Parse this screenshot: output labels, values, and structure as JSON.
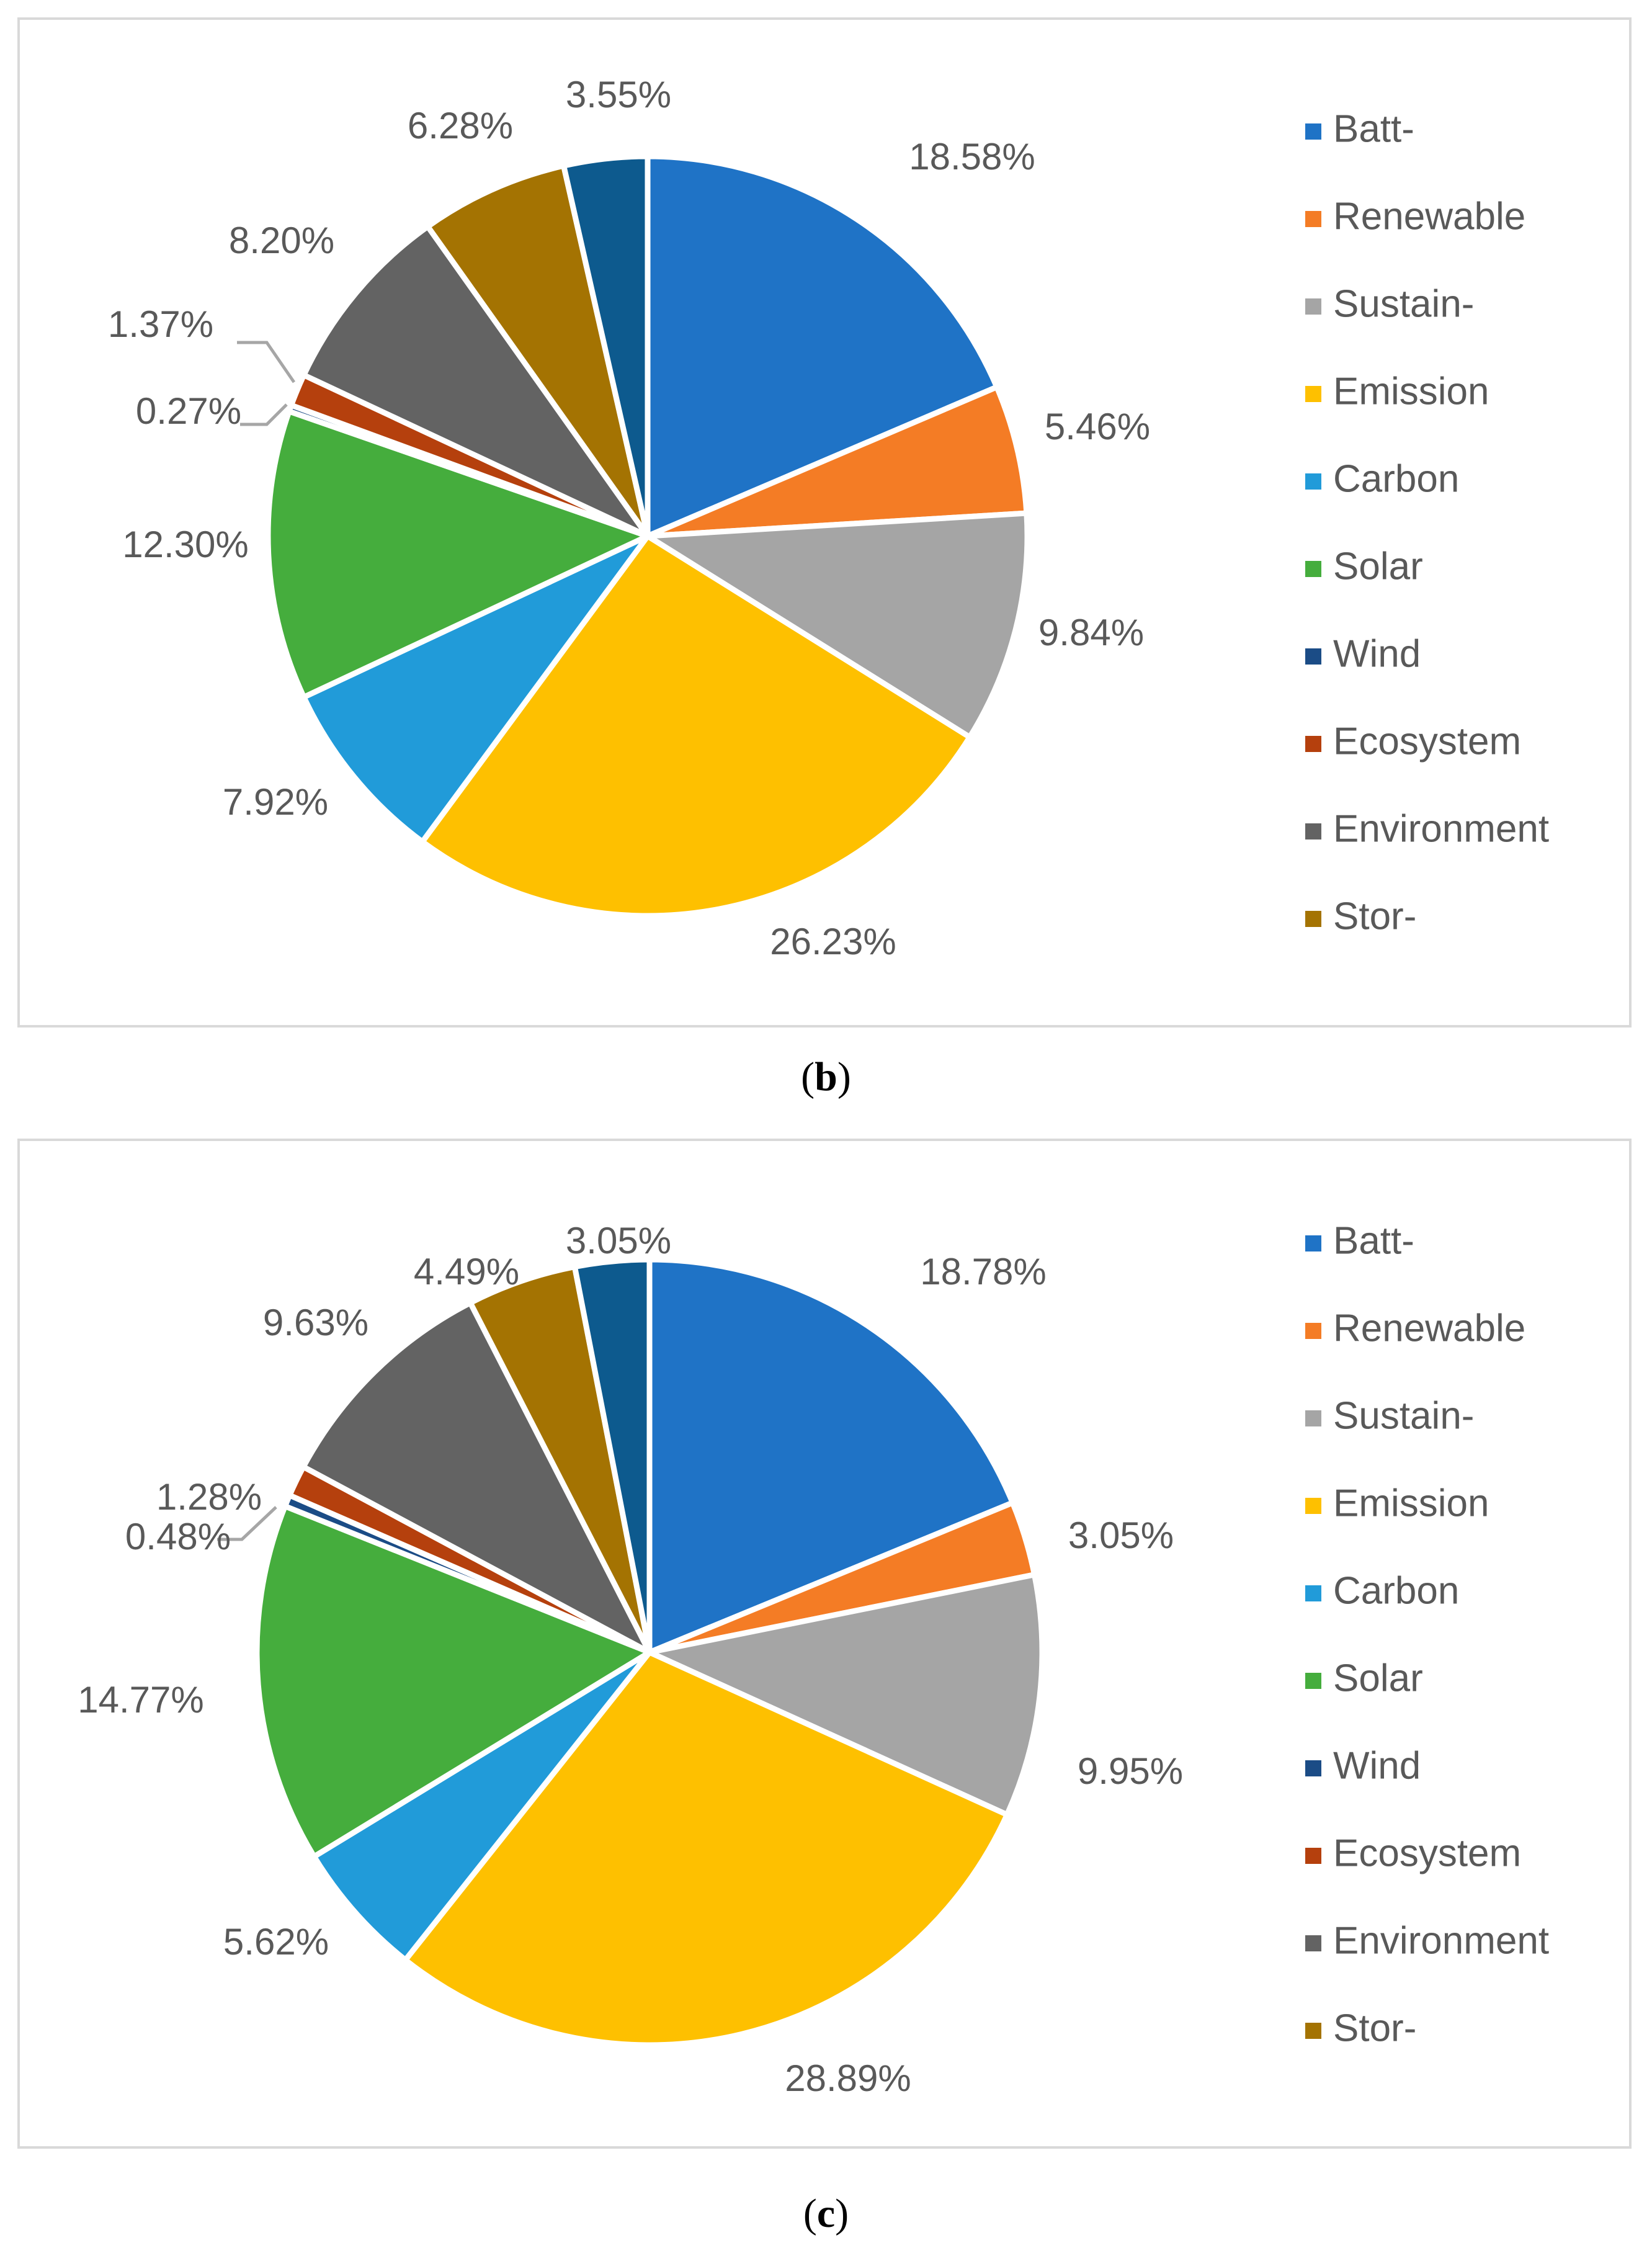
{
  "chart_data": [
    {
      "type": "pie",
      "panel_label": "b",
      "categories": [
        "Batt-",
        "Renewable",
        "Sustain-",
        "Emission",
        "Carbon",
        "Solar",
        "Wind",
        "Ecosystem",
        "Environment",
        "Stor-"
      ],
      "slices": [
        {
          "category": "Batt-",
          "value": 18.58,
          "label": "18.58%"
        },
        {
          "category": "Renewable",
          "value": 5.46,
          "label": "5.46%"
        },
        {
          "category": "Sustain-",
          "value": 9.84,
          "label": "9.84%"
        },
        {
          "category": "Emission",
          "value": 26.23,
          "label": "26.23%"
        },
        {
          "category": "Carbon",
          "value": 7.92,
          "label": "7.92%"
        },
        {
          "category": "Solar",
          "value": 12.3,
          "label": "12.30%"
        },
        {
          "category": "Wind",
          "value": 0.27,
          "label": "0.27%"
        },
        {
          "category": "Ecosystem",
          "value": 1.37,
          "label": "1.37%"
        },
        {
          "category": "Environment",
          "value": 8.2,
          "label": "8.20%"
        },
        {
          "category": "Stor-",
          "value": 6.28,
          "label": "6.28%"
        },
        {
          "category": "",
          "value": 3.55,
          "label": "3.55%"
        }
      ],
      "legend_position": "right"
    },
    {
      "type": "pie",
      "panel_label": "c",
      "categories": [
        "Batt-",
        "Renewable",
        "Sustain-",
        "Emission",
        "Carbon",
        "Solar",
        "Wind",
        "Ecosystem",
        "Environment",
        "Stor-"
      ],
      "slices": [
        {
          "category": "Batt-",
          "value": 18.78,
          "label": "18.78%"
        },
        {
          "category": "Renewable",
          "value": 3.05,
          "label": "3.05%"
        },
        {
          "category": "Sustain-",
          "value": 9.95,
          "label": "9.95%"
        },
        {
          "category": "Emission",
          "value": 28.89,
          "label": "28.89%"
        },
        {
          "category": "Carbon",
          "value": 5.62,
          "label": "5.62%"
        },
        {
          "category": "Solar",
          "value": 14.77,
          "label": "14.77%"
        },
        {
          "category": "Wind",
          "value": 0.48,
          "label": "0.48%"
        },
        {
          "category": "Ecosystem",
          "value": 1.28,
          "label": "1.28%"
        },
        {
          "category": "Environment",
          "value": 9.63,
          "label": "9.63%"
        },
        {
          "category": "Stor-",
          "value": 4.49,
          "label": "4.49%"
        },
        {
          "category": "",
          "value": 3.05,
          "label": "3.05%"
        }
      ],
      "legend_position": "right"
    }
  ],
  "colors": [
    "#1f73c6",
    "#f47c25",
    "#a5a5a5",
    "#fec000",
    "#219bd9",
    "#45ad3d",
    "#1b4c86",
    "#b5400d",
    "#636363",
    "#a47302",
    "#0d5a8e"
  ],
  "label_color": "#595959",
  "captions": {
    "b": "b",
    "c": "c"
  }
}
